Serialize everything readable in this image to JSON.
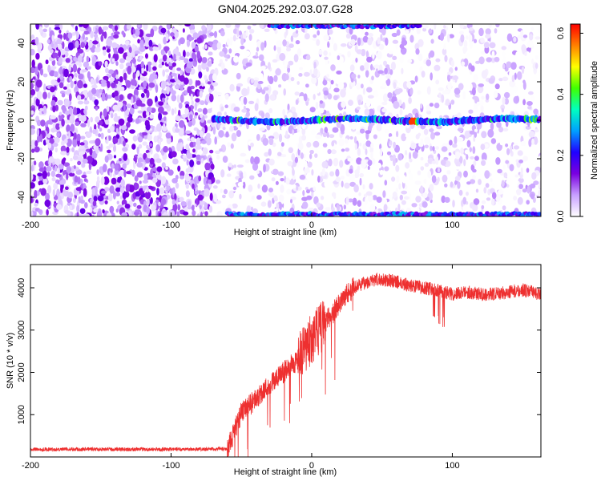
{
  "title": "GN04.2025.292.03.07.G28",
  "chart_data": [
    {
      "type": "heatmap",
      "xlabel": "Height of straight line (km)",
      "ylabel": "Frequency (Hz)",
      "xlim": [
        -200,
        163
      ],
      "ylim": [
        -50,
        50
      ],
      "xticks": [
        -200,
        -100,
        0,
        100
      ],
      "yticks": [
        -40,
        -20,
        0,
        20,
        40
      ],
      "colorbar": {
        "label": "Normalized spectral amplitude",
        "range": [
          0,
          0.63
        ],
        "ticks": [
          0.0,
          0.2,
          0.4,
          0.6
        ],
        "colors": [
          "#ffffff",
          "#c8a0ff",
          "#7a00e0",
          "#2000ff",
          "#00a0ff",
          "#00ffc0",
          "#40ff00",
          "#ffff00",
          "#ff8000",
          "#ff0000"
        ]
      },
      "features": [
        {
          "kind": "carrier-line",
          "frequency": 0,
          "x_start": -70,
          "x_end": 163,
          "peak_amplitude": 0.6,
          "peak_x": 72
        },
        {
          "kind": "edge-line",
          "frequency": 49,
          "x_start": -30,
          "x_end": 78
        },
        {
          "kind": "edge-line",
          "frequency": -49,
          "x_start": -60,
          "x_end": 163
        },
        {
          "kind": "noise-region",
          "x_start": -200,
          "x_end": -70,
          "level": "high"
        },
        {
          "kind": "noise-region",
          "x_start": -70,
          "x_end": 163,
          "level": "low"
        }
      ]
    },
    {
      "type": "line",
      "xlabel": "Height of straight line (km)",
      "ylabel": "SNR (10 * v/v)",
      "xlim": [
        -200,
        163
      ],
      "ylim": [
        0,
        4550
      ],
      "xticks": [
        -200,
        -100,
        0,
        100
      ],
      "yticks": [
        1000,
        2000,
        3000,
        4000
      ],
      "color": "#ee3030",
      "series": [
        {
          "x": [
            -200,
            -180,
            -160,
            -140,
            -120,
            -100,
            -80,
            -60,
            -55,
            -50,
            -45,
            -40,
            -35,
            -30,
            -25,
            -20,
            -15,
            -10,
            -5,
            0,
            5,
            10,
            15,
            20,
            25,
            30,
            40,
            50,
            60,
            70,
            80,
            90,
            100,
            110,
            120,
            130,
            140,
            150,
            163
          ],
          "values": [
            180,
            180,
            185,
            180,
            180,
            180,
            185,
            190,
            600,
            1050,
            1200,
            1350,
            1550,
            1700,
            1850,
            2000,
            2150,
            2300,
            2500,
            2800,
            3000,
            3200,
            3400,
            3650,
            3850,
            4000,
            4150,
            4200,
            4150,
            4050,
            4000,
            3950,
            3850,
            3900,
            3850,
            3850,
            3900,
            3950,
            3850
          ]
        }
      ]
    }
  ]
}
